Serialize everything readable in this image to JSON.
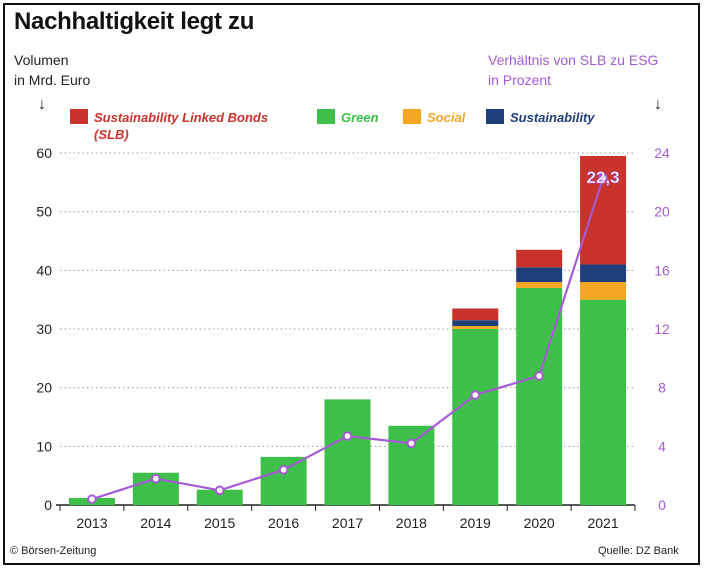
{
  "title": "Nachhaltigkeit legt zu",
  "left_axis_label": "Volumen\nin Mrd. Euro",
  "right_axis_label": "Verhältnis von SLB zu ESG\nin Prozent",
  "credit": "© Börsen-Zeitung",
  "source": "Quelle: DZ Bank",
  "colors": {
    "slb": "#c8342b",
    "green": "#3dbf4a",
    "social": "#f5a623",
    "sustainability": "#1f3f7a",
    "line": "#a65bd4"
  },
  "chart_data": {
    "type": "bar",
    "stacked": true,
    "categories": [
      "2013",
      "2014",
      "2015",
      "2016",
      "2017",
      "2018",
      "2019",
      "2020",
      "2021"
    ],
    "ylim": [
      0,
      60
    ],
    "yticks": [
      0,
      10,
      20,
      30,
      40,
      50,
      60
    ],
    "y2lim": [
      0,
      24
    ],
    "y2ticks": [
      0,
      4,
      8,
      12,
      16,
      20,
      24
    ],
    "grid": true,
    "legend_position": "top",
    "series": [
      {
        "name": "Green",
        "key": "green",
        "values": [
          1.2,
          5.5,
          2.6,
          8.2,
          18.0,
          13.5,
          30.0,
          37.0,
          35.0
        ]
      },
      {
        "name": "Social",
        "key": "social",
        "values": [
          0,
          0,
          0,
          0,
          0,
          0,
          0.5,
          1.0,
          3.0
        ]
      },
      {
        "name": "Sustainability",
        "key": "sustainability",
        "values": [
          0,
          0,
          0,
          0,
          0,
          0,
          1.0,
          2.5,
          3.0
        ]
      },
      {
        "name": "Sustainability Linked Bonds\n(SLB)",
        "key": "slb",
        "values": [
          0,
          0,
          0,
          0,
          0,
          0,
          2.0,
          3.0,
          18.5
        ]
      }
    ],
    "line": {
      "values": [
        0.4,
        1.8,
        1.0,
        2.4,
        4.7,
        4.2,
        7.5,
        8.8,
        22.3
      ],
      "label_index": 8,
      "label": "22,3"
    }
  }
}
